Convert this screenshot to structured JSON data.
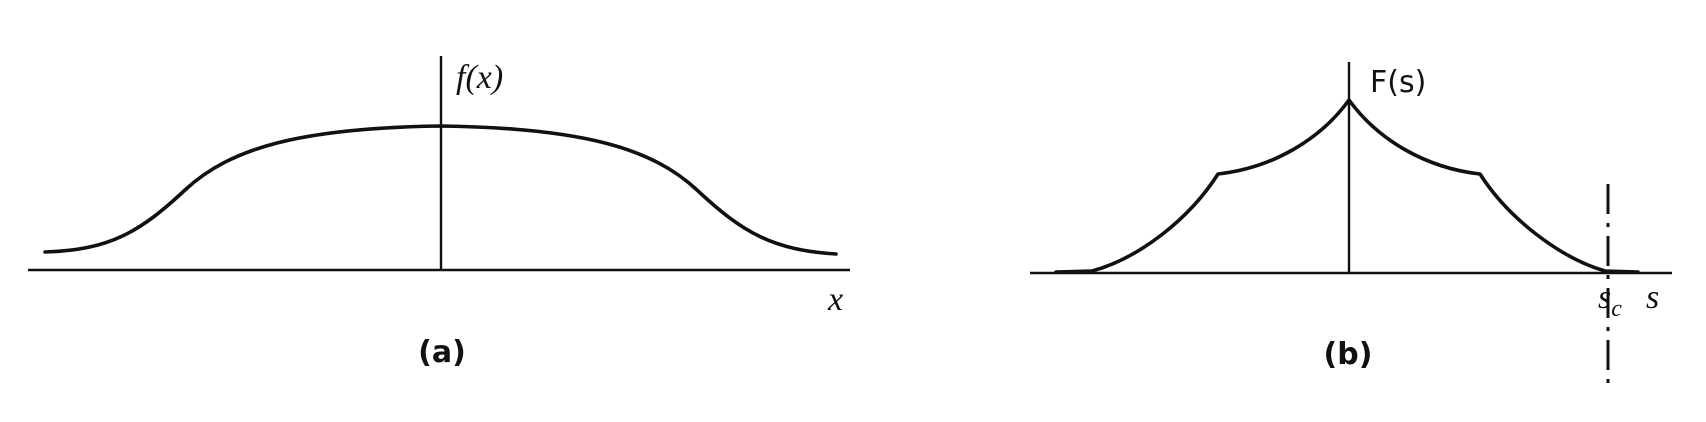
{
  "panel_a": {
    "function_label": "f(x)",
    "x_axis_label": "x",
    "caption": "(a)"
  },
  "panel_b": {
    "function_label": "F(s)",
    "x_axis_label": "s",
    "cutoff_label": "s",
    "cutoff_subscript": "c",
    "caption": "(b)"
  }
}
